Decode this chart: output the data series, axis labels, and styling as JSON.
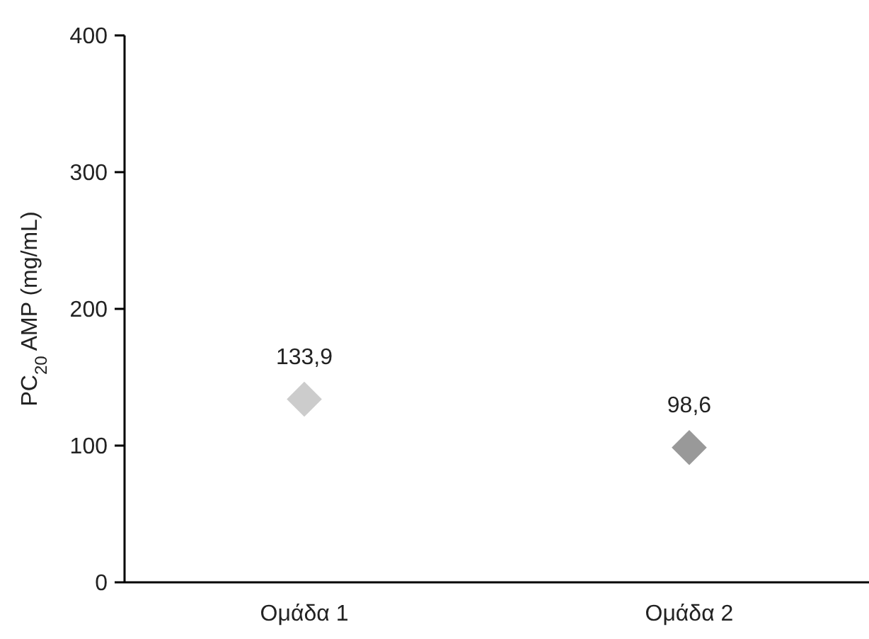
{
  "chart_data": {
    "type": "scatter",
    "ylabel": "PC$_{20}$ AMP (mg/mL)",
    "categories": [
      "Ομάδα 1",
      "Ομάδα 2"
    ],
    "series": [
      {
        "colors": [
          "#cccccc",
          "#999999"
        ],
        "values": [
          133.9,
          98.6
        ],
        "value_labels": [
          "133,9",
          "98,6"
        ]
      }
    ],
    "ylim": [
      0,
      400
    ],
    "yticks": [
      0,
      100,
      200,
      300,
      400
    ],
    "marker": "diamond"
  }
}
